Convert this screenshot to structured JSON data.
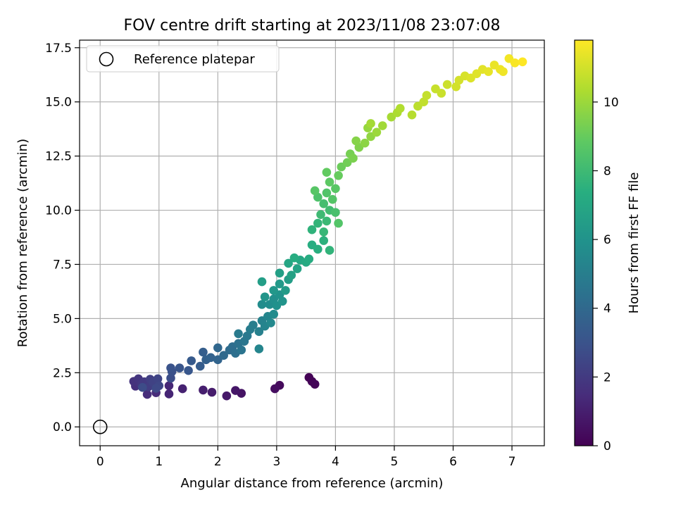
{
  "chart_data": {
    "type": "scatter",
    "title": "FOV centre drift starting at 2023/11/08 23:07:08",
    "xlabel": "Angular distance from reference (arcmin)",
    "ylabel": "Rotation from reference (arcmin)",
    "xlim": [
      -0.35,
      7.55
    ],
    "ylim": [
      -0.87,
      17.85
    ],
    "xticks": [
      0,
      1,
      2,
      3,
      4,
      5,
      6,
      7
    ],
    "xtick_labels": [
      "0",
      "1",
      "2",
      "3",
      "4",
      "5",
      "6",
      "7"
    ],
    "yticks": [
      0,
      2.5,
      5,
      7.5,
      10,
      12.5,
      15,
      17.5
    ],
    "ytick_labels": [
      "0.0",
      "2.5",
      "5.0",
      "7.5",
      "10.0",
      "12.5",
      "15.0",
      "17.5"
    ],
    "grid": true,
    "legend": {
      "position": "upper-left",
      "entries": [
        {
          "label": "Reference platepar",
          "marker": "open-circle"
        }
      ]
    },
    "colorbar": {
      "label": "Hours from first FF file",
      "colormap": "viridis",
      "range": [
        0,
        11.8
      ],
      "ticks": [
        0,
        2,
        4,
        6,
        8,
        10
      ],
      "tick_labels": [
        "0",
        "2",
        "4",
        "6",
        "8",
        "10"
      ]
    },
    "reference_point": {
      "x": 0,
      "y": 0
    },
    "color_axis": "hours",
    "series": [
      {
        "marker": "filled-circle",
        "points": [
          [
            3.55,
            2.28,
            0.05
          ],
          [
            3.6,
            2.1,
            0.1
          ],
          [
            3.65,
            1.97,
            0.15
          ],
          [
            3.05,
            1.92,
            0.3
          ],
          [
            2.97,
            1.76,
            0.4
          ],
          [
            2.4,
            1.55,
            0.6
          ],
          [
            2.3,
            1.68,
            0.7
          ],
          [
            2.15,
            1.43,
            0.8
          ],
          [
            1.9,
            1.6,
            0.9
          ],
          [
            1.75,
            1.7,
            1.0
          ],
          [
            1.4,
            1.76,
            1.1
          ],
          [
            1.17,
            1.52,
            1.2
          ],
          [
            1.17,
            1.9,
            1.3
          ],
          [
            0.95,
            1.58,
            1.4
          ],
          [
            0.8,
            1.5,
            1.5
          ],
          [
            0.6,
            1.88,
            1.6
          ],
          [
            0.57,
            2.1,
            1.7
          ],
          [
            0.65,
            2.22,
            1.8
          ],
          [
            0.7,
            1.95,
            1.9
          ],
          [
            0.75,
            2.08,
            2.0
          ],
          [
            0.82,
            1.85,
            2.1
          ],
          [
            0.85,
            2.2,
            2.2
          ],
          [
            0.9,
            2.05,
            2.3
          ],
          [
            0.98,
            2.22,
            2.4
          ],
          [
            1.0,
            1.9,
            2.5
          ],
          [
            0.95,
            1.78,
            2.6
          ],
          [
            0.72,
            1.82,
            2.7
          ],
          [
            1.2,
            2.25,
            2.8
          ],
          [
            1.22,
            2.55,
            2.9
          ],
          [
            1.2,
            2.72,
            3.0
          ],
          [
            1.35,
            2.72,
            3.1
          ],
          [
            1.5,
            2.6,
            3.2
          ],
          [
            1.55,
            3.05,
            3.3
          ],
          [
            1.7,
            2.8,
            3.4
          ],
          [
            1.75,
            3.45,
            3.5
          ],
          [
            1.8,
            3.1,
            3.6
          ],
          [
            1.88,
            3.2,
            3.7
          ],
          [
            2.0,
            3.1,
            3.8
          ],
          [
            2.0,
            3.65,
            3.9
          ],
          [
            2.1,
            3.3,
            4.0
          ],
          [
            2.2,
            3.55,
            4.1
          ],
          [
            2.25,
            3.7,
            4.2
          ],
          [
            2.3,
            3.4,
            4.3
          ],
          [
            2.35,
            3.85,
            4.4
          ],
          [
            2.4,
            3.55,
            4.5
          ],
          [
            2.45,
            3.95,
            4.6
          ],
          [
            2.5,
            4.2,
            4.7
          ],
          [
            2.35,
            4.3,
            4.8
          ],
          [
            2.55,
            4.5,
            4.9
          ],
          [
            2.6,
            4.7,
            5.0
          ],
          [
            2.7,
            4.4,
            5.1
          ],
          [
            2.75,
            4.9,
            5.2
          ],
          [
            2.8,
            4.65,
            5.3
          ],
          [
            2.7,
            3.6,
            5.35
          ],
          [
            2.85,
            5.1,
            5.4
          ],
          [
            2.9,
            4.8,
            5.5
          ],
          [
            2.95,
            5.2,
            5.6
          ],
          [
            2.75,
            5.65,
            5.65
          ],
          [
            2.88,
            5.65,
            5.7
          ],
          [
            2.95,
            5.9,
            5.8
          ],
          [
            3.0,
            5.6,
            5.9
          ],
          [
            3.05,
            6.1,
            6.0
          ],
          [
            3.1,
            5.8,
            6.05
          ],
          [
            2.8,
            6.0,
            6.1
          ],
          [
            2.95,
            6.3,
            6.2
          ],
          [
            3.05,
            6.6,
            6.3
          ],
          [
            3.15,
            6.3,
            6.4
          ],
          [
            3.2,
            6.8,
            6.5
          ],
          [
            2.75,
            6.7,
            6.55
          ],
          [
            3.05,
            7.1,
            6.6
          ],
          [
            3.25,
            7.0,
            6.7
          ],
          [
            3.35,
            7.3,
            6.8
          ],
          [
            3.2,
            7.55,
            6.9
          ],
          [
            3.4,
            7.7,
            7.0
          ],
          [
            3.5,
            7.6,
            7.1
          ],
          [
            3.55,
            7.75,
            7.2
          ],
          [
            3.3,
            7.8,
            7.25
          ],
          [
            3.6,
            8.4,
            7.3
          ],
          [
            3.7,
            8.2,
            7.4
          ],
          [
            3.8,
            8.6,
            7.5
          ],
          [
            3.6,
            9.1,
            7.6
          ],
          [
            3.9,
            8.15,
            7.65
          ],
          [
            3.7,
            9.4,
            7.7
          ],
          [
            3.8,
            9.0,
            7.8
          ],
          [
            3.85,
            9.5,
            7.9
          ],
          [
            3.75,
            9.8,
            8.0
          ],
          [
            3.9,
            10.0,
            8.1
          ],
          [
            3.8,
            10.3,
            8.2
          ],
          [
            4.0,
            9.9,
            8.3
          ],
          [
            3.7,
            10.6,
            8.4
          ],
          [
            3.85,
            10.8,
            8.5
          ],
          [
            4.05,
            9.4,
            8.55
          ],
          [
            3.95,
            10.5,
            8.6
          ],
          [
            3.65,
            10.9,
            8.65
          ],
          [
            4.0,
            11.0,
            8.7
          ],
          [
            3.9,
            11.3,
            8.8
          ],
          [
            3.85,
            11.75,
            8.9
          ],
          [
            4.05,
            11.6,
            9.0
          ],
          [
            4.1,
            12.0,
            9.1
          ],
          [
            4.2,
            12.2,
            9.2
          ],
          [
            4.25,
            12.6,
            9.3
          ],
          [
            4.3,
            12.4,
            9.4
          ],
          [
            4.4,
            12.9,
            9.5
          ],
          [
            4.35,
            13.2,
            9.6
          ],
          [
            4.5,
            13.1,
            9.7
          ],
          [
            4.6,
            13.4,
            9.8
          ],
          [
            4.55,
            13.8,
            9.9
          ],
          [
            4.7,
            13.6,
            10.0
          ],
          [
            4.8,
            13.9,
            10.1
          ],
          [
            4.6,
            14.0,
            10.15
          ],
          [
            4.95,
            14.3,
            10.2
          ],
          [
            5.05,
            14.5,
            10.3
          ],
          [
            5.1,
            14.7,
            10.4
          ],
          [
            5.3,
            14.4,
            10.5
          ],
          [
            5.4,
            14.8,
            10.6
          ],
          [
            5.5,
            15.0,
            10.7
          ],
          [
            5.55,
            15.3,
            10.75
          ],
          [
            5.7,
            15.6,
            10.8
          ],
          [
            5.8,
            15.4,
            10.85
          ],
          [
            5.9,
            15.8,
            10.9
          ],
          [
            6.05,
            15.7,
            11.0
          ],
          [
            6.1,
            16.0,
            11.05
          ],
          [
            6.2,
            16.2,
            11.1
          ],
          [
            6.3,
            16.1,
            11.2
          ],
          [
            6.4,
            16.3,
            11.25
          ],
          [
            6.5,
            16.5,
            11.3
          ],
          [
            6.6,
            16.4,
            11.4
          ],
          [
            6.7,
            16.7,
            11.45
          ],
          [
            6.8,
            16.5,
            11.5
          ],
          [
            6.85,
            16.4,
            11.55
          ],
          [
            6.95,
            17.0,
            11.6
          ],
          [
            7.05,
            16.8,
            11.7
          ],
          [
            7.18,
            16.85,
            11.8
          ]
        ]
      }
    ],
    "colors": {
      "grid": "#b0b0b0",
      "axis": "#000000",
      "reference_marker": "#000000"
    }
  }
}
